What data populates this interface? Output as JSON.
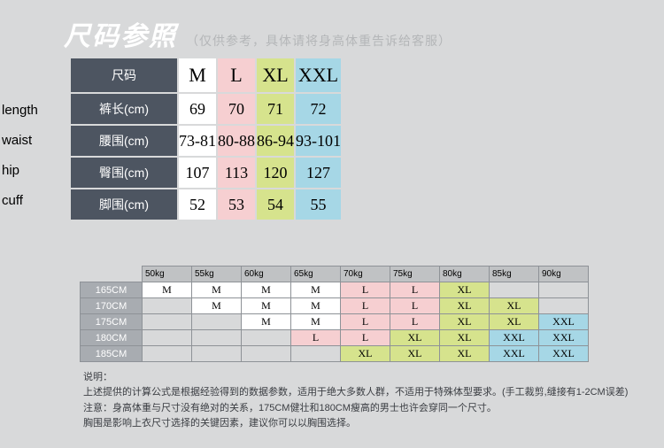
{
  "header": {
    "title": "尺码参照",
    "subtitle": "（仅供参考，具体请将身高体重告诉给客服）"
  },
  "sideLabels": [
    "length",
    "waist",
    "hip",
    "cuff"
  ],
  "mainTable": {
    "cornerLabel": "尺码",
    "sizeCols": [
      {
        "label": "M",
        "cls": "col-m"
      },
      {
        "label": "L",
        "cls": "col-l"
      },
      {
        "label": "XL",
        "cls": "col-xl"
      },
      {
        "label": "XXL",
        "cls": "col-xxl"
      }
    ],
    "rows": [
      {
        "label": "裤长(cm)",
        "vals": [
          "69",
          "70",
          "71",
          "72"
        ]
      },
      {
        "label": "腰围(cm)",
        "vals": [
          "73-81",
          "80-88",
          "86-94",
          "93-101"
        ]
      },
      {
        "label": "臀围(cm)",
        "vals": [
          "107",
          "113",
          "120",
          "127"
        ]
      },
      {
        "label": "脚围(cm)",
        "vals": [
          "52",
          "53",
          "54",
          "55"
        ]
      }
    ]
  },
  "recTable": {
    "weights": [
      "50kg",
      "55kg",
      "60kg",
      "65kg",
      "70kg",
      "75kg",
      "80kg",
      "85kg",
      "90kg"
    ],
    "heights": [
      "165CM",
      "170CM",
      "175CM",
      "180CM",
      "185CM"
    ],
    "grid": [
      [
        "M",
        "M",
        "M",
        "M",
        "L",
        "L",
        "XL",
        "",
        ""
      ],
      [
        "",
        "M",
        "M",
        "M",
        "L",
        "L",
        "XL",
        "XL",
        ""
      ],
      [
        "",
        "",
        "M",
        "M",
        "L",
        "L",
        "XL",
        "XL",
        "XXL"
      ],
      [
        "",
        "",
        "",
        "L",
        "L",
        "XL",
        "XL",
        "XXL",
        "XXL"
      ],
      [
        "",
        "",
        "",
        "",
        "XL",
        "XL",
        "XL",
        "XXL",
        "XXL"
      ]
    ]
  },
  "notes": {
    "label": "说明：",
    "line1": "上述提供的计算公式是根据经验得到的数据参数，适用于绝大多数人群，不适用于特殊体型要求。(手工裁剪,缝接有1-2CM误差)",
    "line2": "注意：身高体重与尺寸没有绝对的关系，175CM健壮和180CM瘦高的男士也许会穿同一个尺寸。",
    "line3": "胸围是影响上衣尺寸选择的关键因素，建议你可以以胸围选择。"
  },
  "colors": {
    "m": "#ffffff",
    "l": "#f6cfd1",
    "xl": "#d6e38d",
    "xxl": "#a6d7e6",
    "bg": "#d8d9da",
    "headerDark": "#4d5561"
  }
}
